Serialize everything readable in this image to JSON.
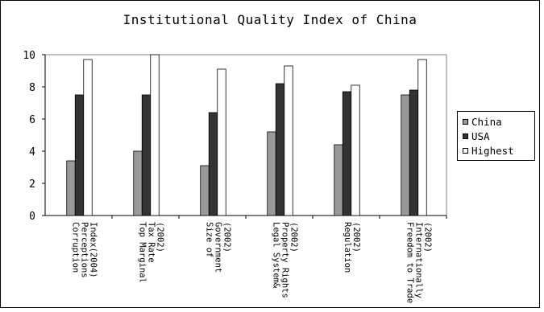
{
  "chart_data": {
    "type": "bar",
    "title": "Institutional Quality Index of China",
    "categories": [
      "Corruption Perceptions Index(2004)",
      "Top Marginal Tax Rate (2002)",
      "Size of Government (2002)",
      "Legal System& Property Rights (2002)",
      "Regulation (2002)",
      "Freedom to Trade Internationally (2002)"
    ],
    "category_lines": [
      [
        "Corruption",
        "Perceptions",
        "Index(2004)"
      ],
      [
        "Top Marginal",
        "Tax Rate",
        "(2002)"
      ],
      [
        "Size of",
        "Government",
        "(2002)"
      ],
      [
        "Legal System&",
        "Property Rights",
        "(2002)"
      ],
      [
        "Regulation",
        "(2002)"
      ],
      [
        "Freedom to Trade",
        "Internationally",
        "(2002)"
      ]
    ],
    "series": [
      {
        "name": "China",
        "color": "#999999",
        "values": [
          3.4,
          4.0,
          3.1,
          5.2,
          4.4,
          7.5
        ]
      },
      {
        "name": "USA",
        "color": "#333333",
        "values": [
          7.5,
          7.5,
          6.4,
          8.2,
          7.7,
          7.8
        ]
      },
      {
        "name": "Highest",
        "color": "#ffffff",
        "values": [
          9.7,
          10.0,
          9.1,
          9.3,
          8.1,
          9.7
        ]
      }
    ],
    "ylim": [
      0,
      10
    ],
    "yticks": [
      "0",
      "2",
      "4",
      "6",
      "8",
      "10"
    ],
    "grid": false,
    "legend_position": "right"
  }
}
